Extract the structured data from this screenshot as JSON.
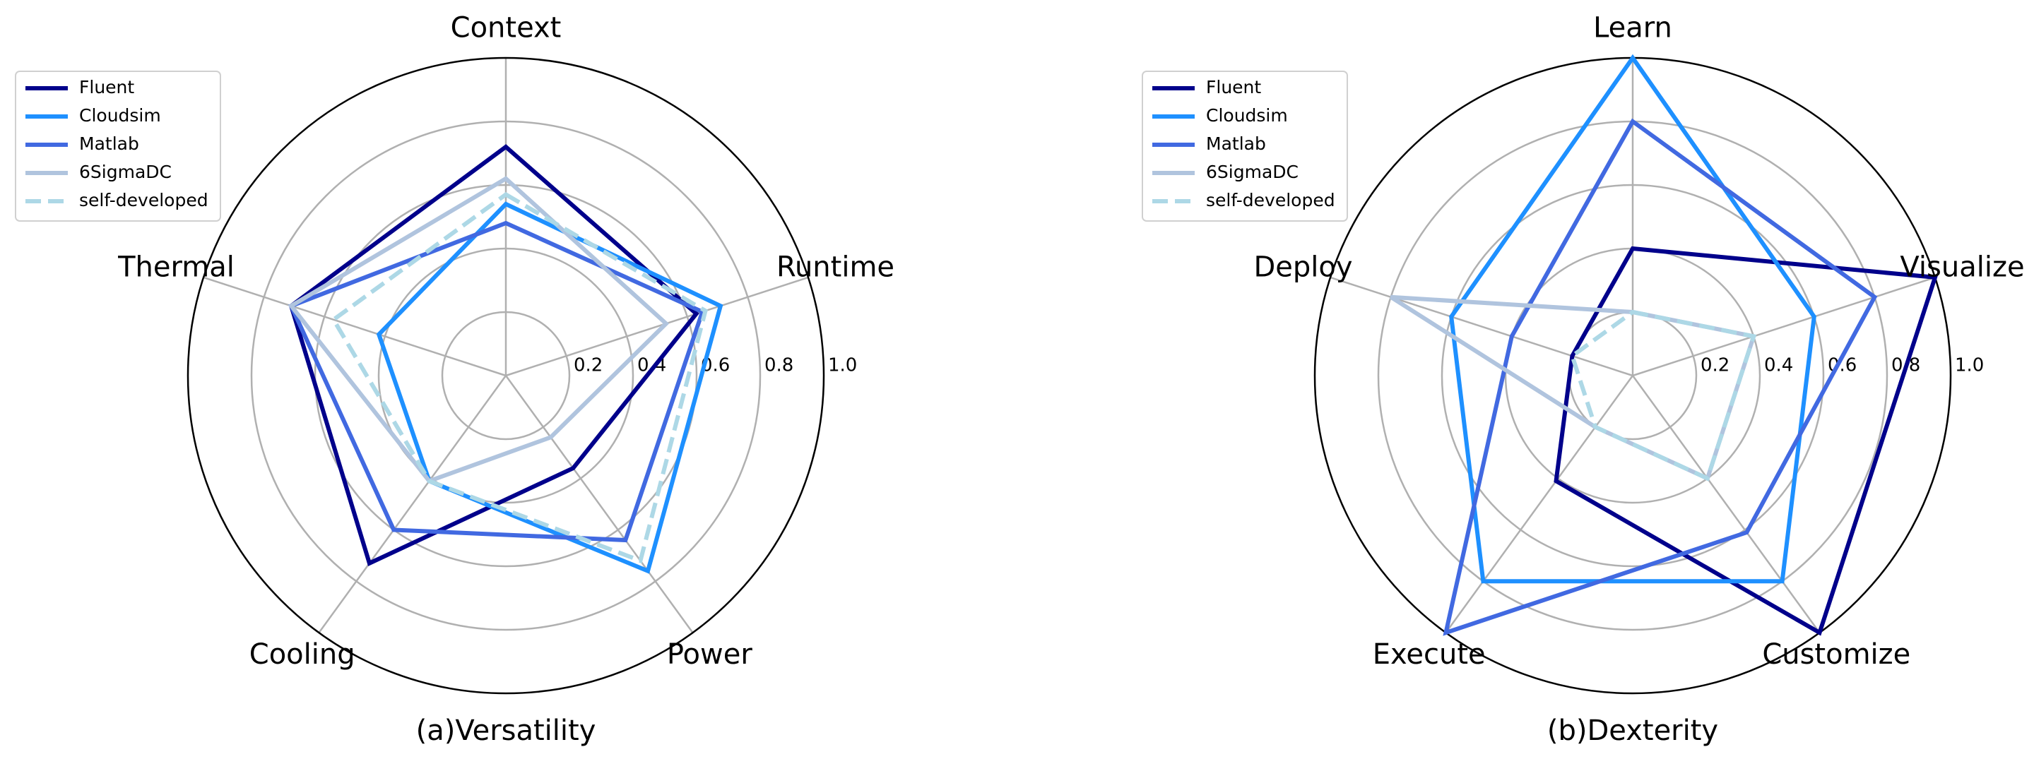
{
  "chart_data": [
    {
      "type": "radar",
      "title": "(a)Versatility",
      "categories": [
        "Context",
        "Runtime",
        "Power",
        "Cooling",
        "Thermal"
      ],
      "ylim": [
        0,
        1.0
      ],
      "yticks": [
        0.2,
        0.4,
        0.6,
        0.8,
        {
          "value": 1.0,
          "label": "1.0"
        }
      ],
      "legend": "upper left",
      "series": [
        {
          "name": "Fluent",
          "color": "#00008b",
          "linestyle": "solid",
          "values": [
            0.72,
            0.63,
            0.36,
            0.73,
            0.71
          ]
        },
        {
          "name": "Cloudsim",
          "color": "#1e90ff",
          "linestyle": "solid",
          "values": [
            0.54,
            0.71,
            0.76,
            0.41,
            0.42
          ]
        },
        {
          "name": "Matlab",
          "color": "#4169e1",
          "linestyle": "solid",
          "values": [
            0.48,
            0.65,
            0.64,
            0.6,
            0.71
          ]
        },
        {
          "name": "6SigmaDC",
          "color": "#b0c4de",
          "linestyle": "solid",
          "values": [
            0.62,
            0.53,
            0.24,
            0.41,
            0.71
          ]
        },
        {
          "name": "self-developed",
          "color": "#add8e6",
          "linestyle": "dashed",
          "values": [
            0.57,
            0.66,
            0.72,
            0.41,
            0.57
          ]
        }
      ]
    },
    {
      "type": "radar",
      "title": "(b)Dexterity",
      "categories": [
        "Learn",
        "Visualize",
        "Customize",
        "Execute",
        "Deploy"
      ],
      "ylim": [
        0,
        1.0
      ],
      "yticks": [
        0.2,
        0.4,
        0.6,
        0.8,
        {
          "value": 1.0,
          "label": "1.0"
        }
      ],
      "legend": "upper left",
      "series": [
        {
          "name": "Fluent",
          "color": "#00008b",
          "linestyle": "solid",
          "values": [
            0.4,
            1.0,
            1.0,
            0.41,
            0.2
          ]
        },
        {
          "name": "Cloudsim",
          "color": "#1e90ff",
          "linestyle": "solid",
          "values": [
            1.0,
            0.6,
            0.8,
            0.8,
            0.6
          ]
        },
        {
          "name": "Matlab",
          "color": "#4169e1",
          "linestyle": "solid",
          "values": [
            0.8,
            0.8,
            0.61,
            1.0,
            0.4
          ]
        },
        {
          "name": "6SigmaDC",
          "color": "#b0c4de",
          "linestyle": "solid",
          "values": [
            0.2,
            0.4,
            0.4,
            0.2,
            0.8
          ]
        },
        {
          "name": "self-developed",
          "color": "#add8e6",
          "linestyle": "dashed",
          "values": [
            0.2,
            0.4,
            0.4,
            0.2,
            0.2
          ]
        }
      ]
    }
  ]
}
